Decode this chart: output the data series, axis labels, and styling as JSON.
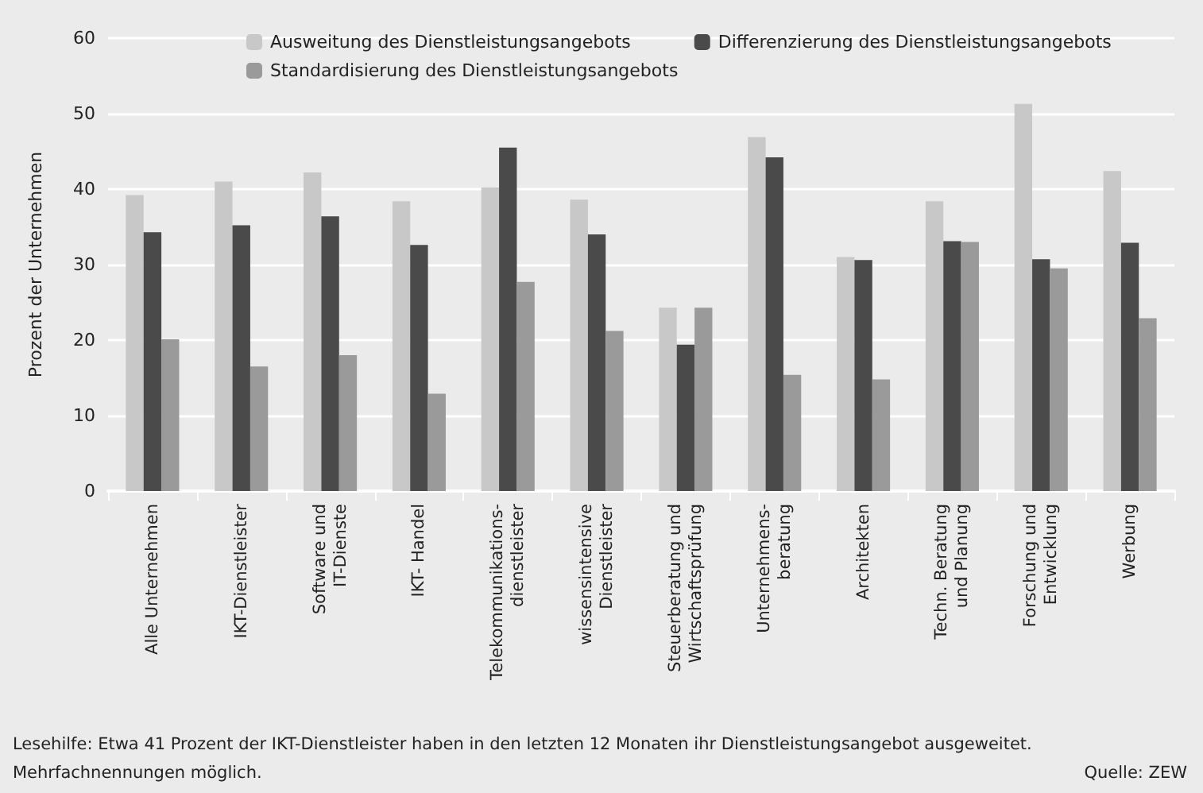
{
  "chart_data": {
    "type": "bar",
    "ylabel": "Prozent der Unternehmen",
    "categories": [
      "Alle Unternehmen",
      "IKT-Dienstleister",
      "Software und\nIT-Dienste",
      "IKT- Handel",
      "Telekommunikations-\ndienstleister",
      "wissensintensive\nDienstleister",
      "Steuerberatung und\nWirtschaftsprüfung",
      "Unternehmens-\nberatung",
      "Architekten",
      "Techn. Beratung\nund Planung",
      "Forschung und\nEntwicklung",
      "Werbung"
    ],
    "series": [
      {
        "name": "Ausweitung des Dienstleistungsangebots",
        "color": "#c8c8c8",
        "values": [
          39.2,
          41,
          42.2,
          38.4,
          40.2,
          38.6,
          24.3,
          46.9,
          31,
          38.4,
          51.3,
          42.4
        ]
      },
      {
        "name": "Differenzierung des Dienstleistungsangebots",
        "color": "#4a4a4a",
        "values": [
          34.3,
          35.2,
          36.4,
          32.6,
          45.5,
          34,
          19.4,
          44.2,
          30.6,
          33.1,
          30.7,
          32.9
        ]
      },
      {
        "name": "Standardisierung des Dienstleistungsangebots",
        "color": "#9a9a9a",
        "values": [
          20.1,
          16.5,
          18,
          12.9,
          27.7,
          21.2,
          24.3,
          15.4,
          14.8,
          33,
          29.5,
          22.9
        ]
      }
    ],
    "ylim": [
      0,
      60
    ],
    "yticks": [
      0,
      10,
      20,
      30,
      40,
      50,
      60
    ],
    "grid": "y",
    "legend": "top",
    "annotations": [
      "Lesehilfe: Etwa 41 Prozent der IKT-Dienstleister haben in den letzten 12 Monaten ihr Dienstleistungsangebot ausgeweitet.",
      "Mehrfachnennungen möglich.",
      "Quelle: ZEW"
    ]
  }
}
